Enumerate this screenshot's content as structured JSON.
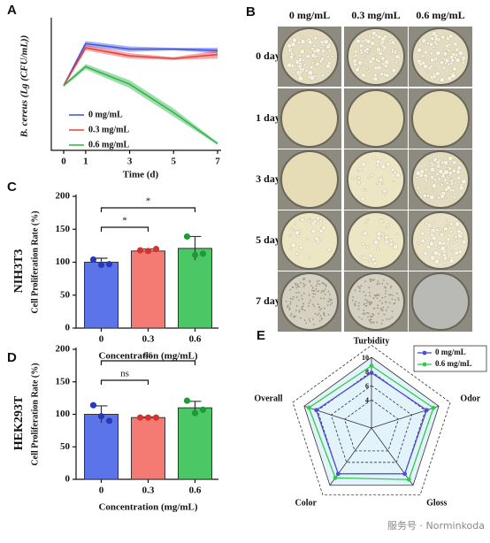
{
  "chart_data": [
    {
      "type": "line",
      "panel": "A",
      "x_label": "Time (d)",
      "y_label": "B. cereus (Lg (CFU/mL))",
      "x": [
        0,
        1,
        3,
        5,
        7
      ],
      "xlim": [
        0,
        7
      ],
      "xticks": [
        0,
        1,
        3,
        5,
        7
      ],
      "ylim": [
        0,
        9.5
      ],
      "legend": "lower left",
      "series": [
        {
          "name": "0 mg/mL",
          "color": "#3f51e0",
          "values": [
            4.8,
            7.9,
            7.5,
            7.5,
            7.4
          ],
          "errors": [
            0.1,
            0.2,
            0.2,
            0.1,
            0.2
          ]
        },
        {
          "name": "0.3 mg/mL",
          "color": "#e8413d",
          "values": [
            4.8,
            7.6,
            7.0,
            6.8,
            7.1
          ],
          "errors": [
            0.1,
            0.2,
            0.2,
            0.1,
            0.3
          ]
        },
        {
          "name": "0.6 mg/mL",
          "color": "#2db34a",
          "values": [
            4.8,
            6.2,
            4.9,
            2.8,
            0.5
          ],
          "errors": [
            0.1,
            0.2,
            0.3,
            0.3,
            0.1
          ]
        }
      ]
    },
    {
      "type": "bar",
      "panel": "C",
      "cell_line": "NIH3T3",
      "y_label": "Cell Proliferation Rate (%)",
      "x_label": "Concentration (mg/mL)",
      "categories": [
        "0",
        "0.3",
        "0.6"
      ],
      "colors": [
        "#5b74ea",
        "#f47a74",
        "#4bc865"
      ],
      "values": [
        100,
        117,
        121
      ],
      "errors": [
        6,
        3,
        18
      ],
      "points": [
        [
          104,
          96,
          97
        ],
        [
          118,
          117,
          120
        ],
        [
          139,
          111,
          113
        ]
      ],
      "ylim": [
        0,
        200
      ],
      "yticks": [
        0,
        50,
        100,
        150,
        200
      ],
      "comparisons": [
        {
          "pair": [
            "0",
            "0.3"
          ],
          "label": "*"
        },
        {
          "pair": [
            "0",
            "0.6"
          ],
          "label": "*"
        }
      ]
    },
    {
      "type": "bar",
      "panel": "D",
      "cell_line": "HEK293T",
      "y_label": "Cell Proliferation Rate (%)",
      "x_label": "Concentration (mg/mL)",
      "categories": [
        "0",
        "0.3",
        "0.6"
      ],
      "colors": [
        "#5b74ea",
        "#f47a74",
        "#4bc865"
      ],
      "values": [
        100,
        95,
        110
      ],
      "errors": [
        13,
        1,
        10
      ],
      "points": [
        [
          114,
          97,
          90
        ],
        [
          95,
          95,
          95
        ],
        [
          121,
          102,
          107
        ]
      ],
      "ylim": [
        0,
        200
      ],
      "yticks": [
        0,
        50,
        100,
        150,
        200
      ],
      "comparisons": [
        {
          "pair": [
            "0",
            "0.3"
          ],
          "label": "ns"
        },
        {
          "pair": [
            "0",
            "0.6"
          ],
          "label": "ns"
        }
      ]
    },
    {
      "type": "radar",
      "panel": "E",
      "axes": [
        "Turbidity",
        "Odor",
        "Gloss",
        "Color",
        "Overall"
      ],
      "rlim": [
        0,
        10
      ],
      "rticks": [
        4,
        6,
        8,
        10
      ],
      "legend": "upper right",
      "series": [
        {
          "name": "0 mg/mL",
          "color": "#4a4fd6",
          "values": [
            7.8,
            8.2,
            8.0,
            8.0,
            8.2
          ]
        },
        {
          "name": "0.6 mg/mL",
          "color": "#2ecc4a",
          "values": [
            8.8,
            9.2,
            9.0,
            8.7,
            9.3
          ]
        }
      ]
    }
  ],
  "plates": {
    "panel": "B",
    "columns": [
      "0 mg/mL",
      "0.3 mg/mL",
      "0.6 mg/mL"
    ],
    "rows": [
      "0 day",
      "1 day",
      "3 day",
      "5 day",
      "7 day"
    ]
  },
  "watermark": "服务号 · Norminkoda"
}
